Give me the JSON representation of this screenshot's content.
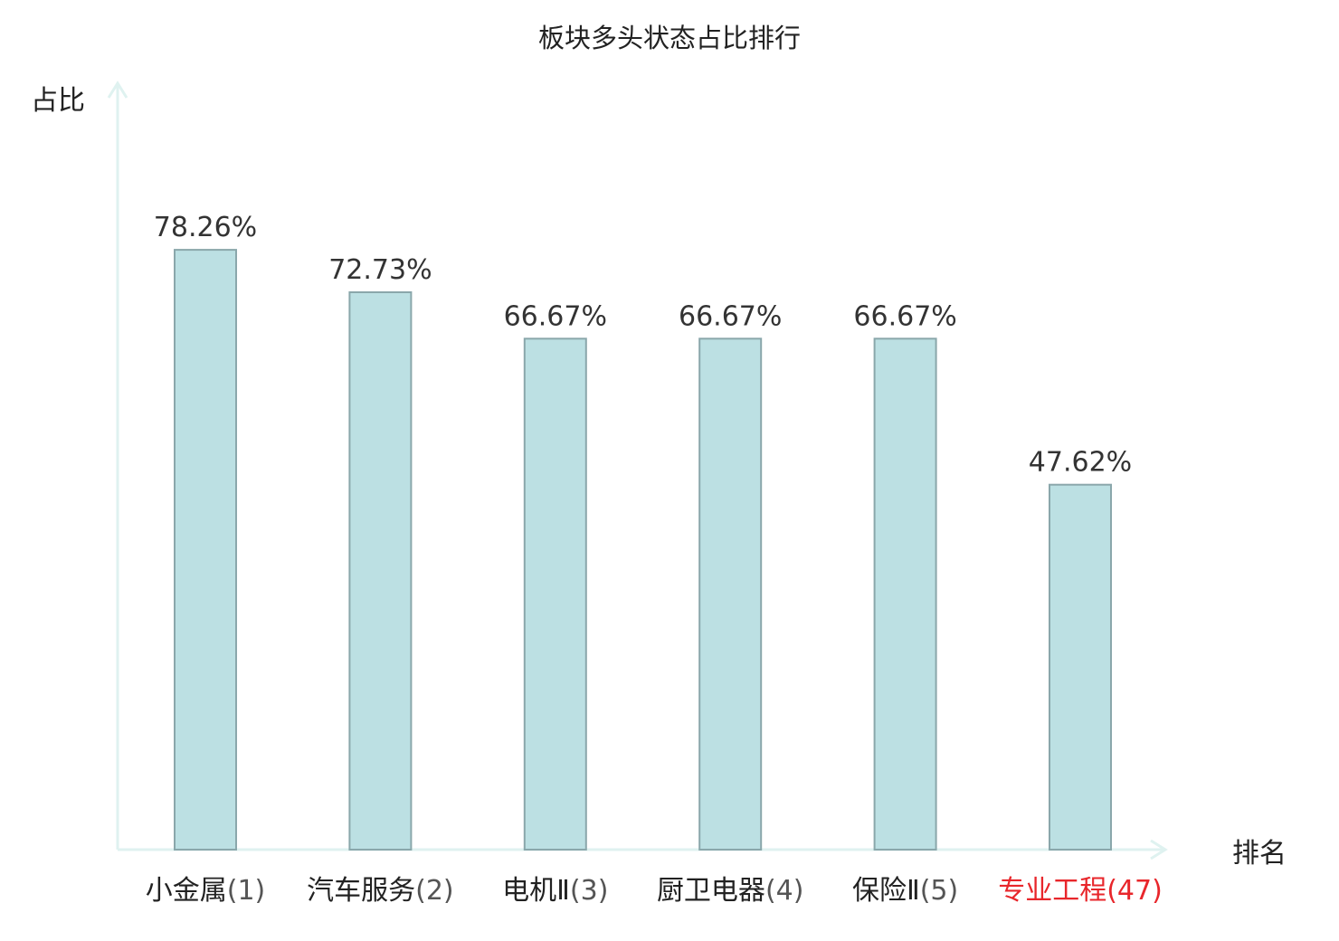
{
  "chart_data": {
    "type": "bar",
    "title": "板块多头状态占比排行",
    "xlabel": "排名",
    "ylabel": "占比",
    "ylim": [
      0,
      100
    ],
    "grid": false,
    "categories": [
      {
        "name": "小金属",
        "rank": "(1)",
        "highlight": false
      },
      {
        "name": "汽车服务",
        "rank": "(2)",
        "highlight": false
      },
      {
        "name": "电机Ⅱ",
        "rank": "(3)",
        "highlight": false
      },
      {
        "name": "厨卫电器",
        "rank": "(4)",
        "highlight": false
      },
      {
        "name": "保险Ⅱ",
        "rank": "(5)",
        "highlight": false
      },
      {
        "name": "专业工程",
        "rank": "(47)",
        "highlight": true
      }
    ],
    "values": [
      78.26,
      72.73,
      66.67,
      66.67,
      66.67,
      47.62
    ],
    "value_labels": [
      "78.26%",
      "72.73%",
      "66.67%",
      "66.67%",
      "66.67%",
      "47.62%"
    ]
  },
  "colors": {
    "bar_fill": "#bce0e3",
    "bar_stroke": "#8aa7ab",
    "axis": "#dff2f0",
    "highlight": "#e8262b",
    "rank_text": "#555555",
    "text": "#222222"
  }
}
